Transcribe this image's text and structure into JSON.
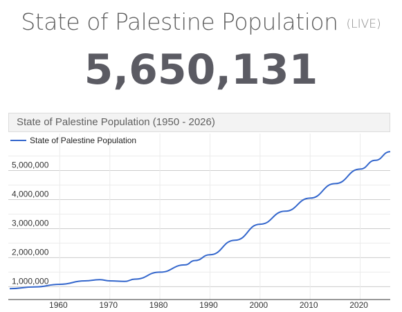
{
  "header": {
    "title": "State of Palestine Population",
    "live_label": "(LIVE)",
    "counter": "5,650,131"
  },
  "chart_data": {
    "type": "line",
    "title": "State of Palestine Population (1950 - 2026)",
    "xlabel": "",
    "ylabel": "",
    "xlim": [
      1950,
      2026
    ],
    "ylim": [
      700000,
      5750000
    ],
    "x_ticks": [
      1960,
      1970,
      1980,
      1990,
      2000,
      2010,
      2020
    ],
    "x_tick_labels": [
      "1960",
      "1970",
      "1980",
      "1990",
      "2000",
      "2010",
      "2020"
    ],
    "y_ticks": [
      1000000,
      2000000,
      3000000,
      4000000,
      5000000
    ],
    "y_tick_labels": [
      "1,000,000",
      "2,000,000",
      "3,000,000",
      "4,000,000",
      "5,000,000"
    ],
    "grid": true,
    "legend_position": "top-left",
    "color": "#3366cc",
    "series": [
      {
        "name": "State of Palestine Population",
        "x": [
          1950,
          1955,
          1960,
          1965,
          1968,
          1970,
          1973,
          1975,
          1980,
          1985,
          1987,
          1990,
          1995,
          2000,
          2005,
          2010,
          2015,
          2020,
          2023,
          2026
        ],
        "y": [
          930000,
          990000,
          1080000,
          1200000,
          1240000,
          1200000,
          1180000,
          1260000,
          1500000,
          1750000,
          1900000,
          2100000,
          2600000,
          3150000,
          3600000,
          4050000,
          4550000,
          5050000,
          5350000,
          5650000
        ]
      }
    ]
  }
}
